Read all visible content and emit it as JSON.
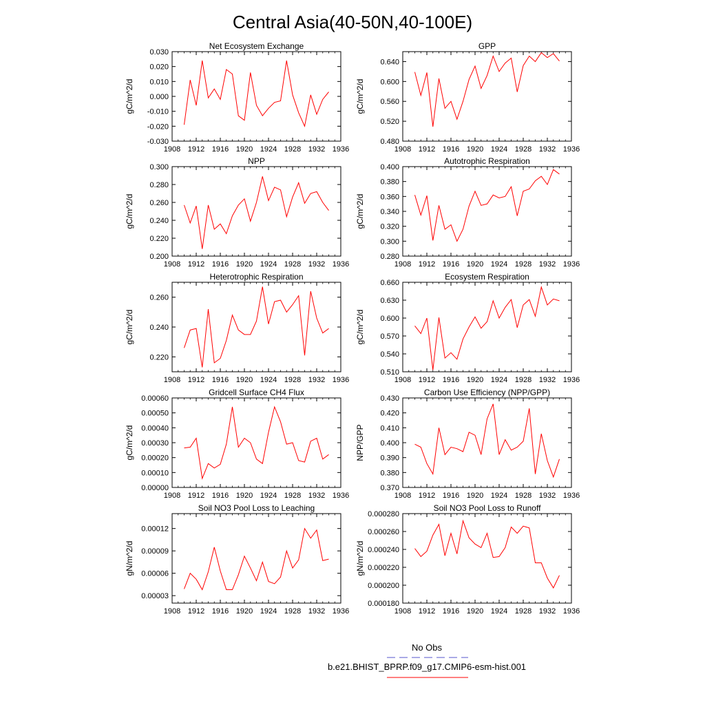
{
  "title": "Central Asia(40-50N,40-100E)",
  "legend": {
    "entries": [
      {
        "label": "No Obs",
        "color": "#5555cc",
        "style": "dashed"
      },
      {
        "label": "b.e21.BHIST_BPRP.f09_g17.CMIP6-esm-hist.001",
        "color": "#ff0000",
        "style": "solid"
      }
    ]
  },
  "chart_data": [
    {
      "type": "line",
      "title": "Net Ecosystem Exchange",
      "ylabel": "gC/m^2/d",
      "xlim": [
        1908,
        1936
      ],
      "xticks": [
        "1908",
        "1912",
        "1916",
        "1920",
        "1924",
        "1928",
        "1932",
        "1936"
      ],
      "ylim": [
        -0.03,
        0.03
      ],
      "yticks": [
        "-0.030",
        "-0.020",
        "-0.010",
        "0.000",
        "0.010",
        "0.020",
        "0.030"
      ],
      "x": [
        1910,
        1911,
        1912,
        1913,
        1914,
        1915,
        1916,
        1917,
        1918,
        1919,
        1920,
        1921,
        1922,
        1923,
        1924,
        1925,
        1926,
        1927,
        1928,
        1929,
        1930,
        1931,
        1932,
        1933,
        1934
      ],
      "series": [
        {
          "values": [
            -0.019,
            0.011,
            -0.006,
            0.024,
            -0.001,
            0.005,
            -0.002,
            0.018,
            0.015,
            -0.013,
            -0.016,
            0.016,
            -0.006,
            -0.013,
            -0.008,
            -0.004,
            -0.003,
            0.024,
            0.001,
            -0.011,
            -0.02,
            0.001,
            -0.012,
            -0.002,
            0.003
          ],
          "color": "#ff0000"
        }
      ]
    },
    {
      "type": "line",
      "title": "GPP",
      "ylabel": "gC/m^2/d",
      "xlim": [
        1908,
        1936
      ],
      "xticks": [
        "1908",
        "1912",
        "1916",
        "1920",
        "1924",
        "1928",
        "1932",
        "1936"
      ],
      "ylim": [
        0.48,
        0.66
      ],
      "yticks": [
        "0.480",
        "0.520",
        "0.560",
        "0.600",
        "0.640"
      ],
      "x": [
        1910,
        1911,
        1912,
        1913,
        1914,
        1915,
        1916,
        1917,
        1918,
        1919,
        1920,
        1921,
        1922,
        1923,
        1924,
        1925,
        1926,
        1927,
        1928,
        1929,
        1930,
        1931,
        1932,
        1933,
        1934
      ],
      "series": [
        {
          "values": [
            0.619,
            0.572,
            0.618,
            0.509,
            0.606,
            0.546,
            0.56,
            0.524,
            0.56,
            0.604,
            0.631,
            0.586,
            0.612,
            0.651,
            0.62,
            0.637,
            0.647,
            0.579,
            0.632,
            0.651,
            0.64,
            0.658,
            0.648,
            0.656,
            0.641
          ],
          "color": "#ff0000"
        }
      ]
    },
    {
      "type": "line",
      "title": "NPP",
      "ylabel": "gC/m^2/d",
      "xlim": [
        1908,
        1936
      ],
      "xticks": [
        "1908",
        "1912",
        "1916",
        "1920",
        "1924",
        "1928",
        "1932",
        "1936"
      ],
      "ylim": [
        0.2,
        0.3
      ],
      "yticks": [
        "0.200",
        "0.220",
        "0.240",
        "0.260",
        "0.280",
        "0.300"
      ],
      "x": [
        1910,
        1911,
        1912,
        1913,
        1914,
        1915,
        1916,
        1917,
        1918,
        1919,
        1920,
        1921,
        1922,
        1923,
        1924,
        1925,
        1926,
        1927,
        1928,
        1929,
        1930,
        1931,
        1932,
        1933,
        1934
      ],
      "series": [
        {
          "values": [
            0.257,
            0.237,
            0.256,
            0.208,
            0.257,
            0.23,
            0.236,
            0.225,
            0.245,
            0.257,
            0.264,
            0.239,
            0.26,
            0.289,
            0.262,
            0.277,
            0.274,
            0.244,
            0.266,
            0.282,
            0.259,
            0.27,
            0.272,
            0.26,
            0.251
          ],
          "color": "#ff0000"
        }
      ]
    },
    {
      "type": "line",
      "title": "Autotrophic Respiration",
      "ylabel": "gC/m^2/d",
      "xlim": [
        1908,
        1936
      ],
      "xticks": [
        "1908",
        "1912",
        "1916",
        "1920",
        "1924",
        "1928",
        "1932",
        "1936"
      ],
      "ylim": [
        0.28,
        0.4
      ],
      "yticks": [
        "0.280",
        "0.300",
        "0.320",
        "0.340",
        "0.360",
        "0.380",
        "0.400"
      ],
      "x": [
        1910,
        1911,
        1912,
        1913,
        1914,
        1915,
        1916,
        1917,
        1918,
        1919,
        1920,
        1921,
        1922,
        1923,
        1924,
        1925,
        1926,
        1927,
        1928,
        1929,
        1930,
        1931,
        1932,
        1933,
        1934
      ],
      "series": [
        {
          "values": [
            0.362,
            0.335,
            0.361,
            0.301,
            0.348,
            0.316,
            0.322,
            0.3,
            0.316,
            0.347,
            0.367,
            0.348,
            0.35,
            0.362,
            0.358,
            0.36,
            0.373,
            0.334,
            0.367,
            0.37,
            0.381,
            0.387,
            0.376,
            0.396,
            0.39
          ],
          "color": "#ff0000"
        }
      ]
    },
    {
      "type": "line",
      "title": "Heterotrophic Respiration",
      "ylabel": "gC/m^2/d",
      "xlim": [
        1908,
        1936
      ],
      "xticks": [
        "1908",
        "1912",
        "1916",
        "1920",
        "1924",
        "1928",
        "1932",
        "1936"
      ],
      "ylim": [
        0.21,
        0.27
      ],
      "yticks": [
        "0.220",
        "0.240",
        "0.260"
      ],
      "x": [
        1910,
        1911,
        1912,
        1913,
        1914,
        1915,
        1916,
        1917,
        1918,
        1919,
        1920,
        1921,
        1922,
        1923,
        1924,
        1925,
        1926,
        1927,
        1928,
        1929,
        1930,
        1931,
        1932,
        1933,
        1934
      ],
      "series": [
        {
          "values": [
            0.226,
            0.238,
            0.239,
            0.213,
            0.252,
            0.216,
            0.219,
            0.231,
            0.248,
            0.238,
            0.235,
            0.235,
            0.244,
            0.267,
            0.242,
            0.257,
            0.258,
            0.25,
            0.255,
            0.261,
            0.221,
            0.264,
            0.246,
            0.236,
            0.239
          ],
          "color": "#ff0000"
        }
      ]
    },
    {
      "type": "line",
      "title": "Ecosystem Respiration",
      "ylabel": "gC/m^2/d",
      "xlim": [
        1908,
        1936
      ],
      "xticks": [
        "1908",
        "1912",
        "1916",
        "1920",
        "1924",
        "1928",
        "1932",
        "1936"
      ],
      "ylim": [
        0.51,
        0.66
      ],
      "yticks": [
        "0.510",
        "0.540",
        "0.570",
        "0.600",
        "0.630",
        "0.660"
      ],
      "x": [
        1910,
        1911,
        1912,
        1913,
        1914,
        1915,
        1916,
        1917,
        1918,
        1919,
        1920,
        1921,
        1922,
        1923,
        1924,
        1925,
        1926,
        1927,
        1928,
        1929,
        1930,
        1931,
        1932,
        1933,
        1934
      ],
      "series": [
        {
          "values": [
            0.587,
            0.574,
            0.6,
            0.513,
            0.601,
            0.533,
            0.542,
            0.531,
            0.565,
            0.585,
            0.602,
            0.583,
            0.594,
            0.629,
            0.6,
            0.618,
            0.631,
            0.584,
            0.622,
            0.631,
            0.603,
            0.652,
            0.622,
            0.632,
            0.629
          ],
          "color": "#ff0000"
        }
      ]
    },
    {
      "type": "line",
      "title": "Gridcell Surface CH4 Flux",
      "ylabel": "gC/m^2/d",
      "xlim": [
        1908,
        1936
      ],
      "xticks": [
        "1908",
        "1912",
        "1916",
        "1920",
        "1924",
        "1928",
        "1932",
        "1936"
      ],
      "ylim": [
        0.0,
        0.0006
      ],
      "yticks": [
        "0.00000",
        "0.00010",
        "0.00020",
        "0.00030",
        "0.00040",
        "0.00050",
        "0.00060"
      ],
      "x": [
        1910,
        1911,
        1912,
        1913,
        1914,
        1915,
        1916,
        1917,
        1918,
        1919,
        1920,
        1921,
        1922,
        1923,
        1924,
        1925,
        1926,
        1927,
        1928,
        1929,
        1930,
        1931,
        1932,
        1933,
        1934
      ],
      "series": [
        {
          "values": [
            0.000265,
            0.00027,
            0.00033,
            6e-05,
            0.00016,
            0.00013,
            0.000155,
            0.00029,
            0.00054,
            0.00027,
            0.00033,
            0.0003,
            0.00019,
            0.00016,
            0.00037,
            0.00054,
            0.00044,
            0.00029,
            0.0003,
            0.00018,
            0.00017,
            0.00031,
            0.00033,
            0.00019,
            0.00022
          ],
          "color": "#ff0000"
        }
      ]
    },
    {
      "type": "line",
      "title": "Carbon Use Efficiency (NPP/GPP)",
      "ylabel": "NPP/GPP",
      "xlim": [
        1908,
        1936
      ],
      "xticks": [
        "1908",
        "1912",
        "1916",
        "1920",
        "1924",
        "1928",
        "1932",
        "1936"
      ],
      "ylim": [
        0.37,
        0.43
      ],
      "yticks": [
        "0.370",
        "0.380",
        "0.390",
        "0.400",
        "0.410",
        "0.420",
        "0.430"
      ],
      "x": [
        1910,
        1911,
        1912,
        1913,
        1914,
        1915,
        1916,
        1917,
        1918,
        1919,
        1920,
        1921,
        1922,
        1923,
        1924,
        1925,
        1926,
        1927,
        1928,
        1929,
        1930,
        1931,
        1932,
        1933,
        1934
      ],
      "series": [
        {
          "values": [
            0.399,
            0.397,
            0.386,
            0.379,
            0.41,
            0.392,
            0.397,
            0.396,
            0.394,
            0.407,
            0.405,
            0.392,
            0.416,
            0.426,
            0.392,
            0.402,
            0.395,
            0.397,
            0.401,
            0.423,
            0.379,
            0.406,
            0.388,
            0.377,
            0.389
          ],
          "color": "#ff0000"
        }
      ]
    },
    {
      "type": "line",
      "title": "Soil NO3 Pool Loss to Leaching",
      "ylabel": "gN/m^2/d",
      "xlim": [
        1908,
        1936
      ],
      "xticks": [
        "1908",
        "1912",
        "1916",
        "1920",
        "1924",
        "1928",
        "1932",
        "1936"
      ],
      "ylim": [
        2e-05,
        0.00014
      ],
      "yticks": [
        "0.00003",
        "0.00006",
        "0.00009",
        "0.00012"
      ],
      "x": [
        1910,
        1911,
        1912,
        1913,
        1914,
        1915,
        1916,
        1917,
        1918,
        1919,
        1920,
        1921,
        1922,
        1923,
        1924,
        1925,
        1926,
        1927,
        1928,
        1929,
        1930,
        1931,
        1932,
        1933,
        1934
      ],
      "series": [
        {
          "values": [
            3.9e-05,
            6e-05,
            5.2e-05,
            3.8e-05,
            6.2e-05,
            9.5e-05,
            6.3e-05,
            3.8e-05,
            3.8e-05,
            5.8e-05,
            8.3e-05,
            6.7e-05,
            5e-05,
            7.5e-05,
            4.9e-05,
            4.6e-05,
            5.5e-05,
            9e-05,
            6.7e-05,
            7.8e-05,
            0.00012,
            0.000107,
            0.000118,
            7.7e-05,
            7.9e-05
          ],
          "color": "#ff0000"
        }
      ]
    },
    {
      "type": "line",
      "title": "Soil NO3 Pool Loss to Runoff",
      "ylabel": "gN/m^2/d",
      "xlim": [
        1908,
        1936
      ],
      "xticks": [
        "1908",
        "1912",
        "1916",
        "1920",
        "1924",
        "1928",
        "1932",
        "1936"
      ],
      "ylim": [
        0.00018,
        0.00028
      ],
      "yticks": [
        "0.000180",
        "0.000200",
        "0.000220",
        "0.000240",
        "0.000260",
        "0.000280"
      ],
      "x": [
        1910,
        1911,
        1912,
        1913,
        1914,
        1915,
        1916,
        1917,
        1918,
        1919,
        1920,
        1921,
        1922,
        1923,
        1924,
        1925,
        1926,
        1927,
        1928,
        1929,
        1930,
        1931,
        1932,
        1933,
        1934
      ],
      "series": [
        {
          "values": [
            0.000241,
            0.000232,
            0.000238,
            0.000256,
            0.000268,
            0.000233,
            0.000258,
            0.000235,
            0.000272,
            0.000253,
            0.000246,
            0.000242,
            0.000258,
            0.000231,
            0.000232,
            0.000242,
            0.000265,
            0.000258,
            0.000266,
            0.000264,
            0.000225,
            0.000225,
            0.000208,
            0.000197,
            0.000211
          ],
          "color": "#ff0000"
        }
      ]
    }
  ]
}
